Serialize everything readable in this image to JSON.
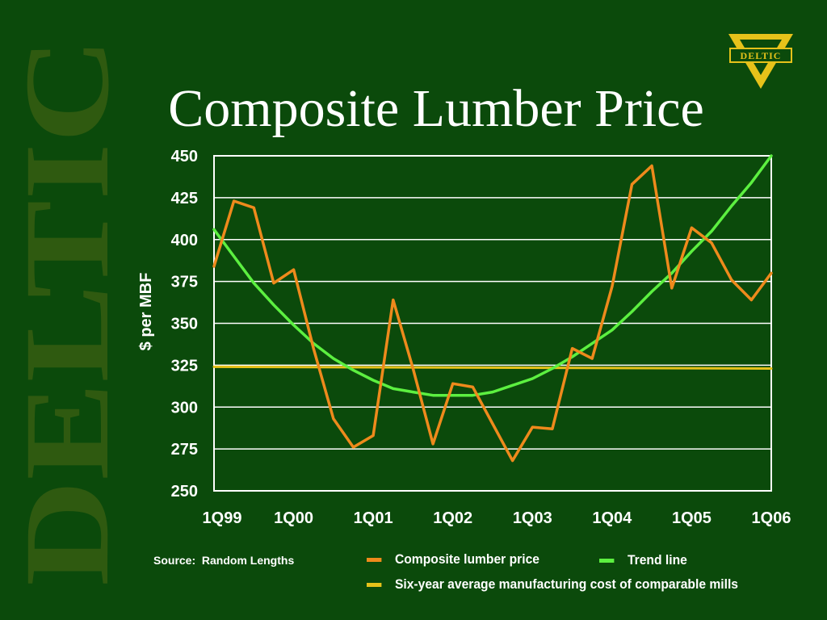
{
  "slide": {
    "title": "Composite Lumber Price",
    "watermark_text": "DELTIC",
    "logo_text": "DELTIC",
    "source": "Source:  Random Lengths"
  },
  "colors": {
    "background": "#0b4a0b",
    "watermark": "#2f5a10",
    "logo_yellow": "#e6c21a",
    "price_line": "#ee8a1c",
    "trend_line": "#5cf040",
    "cost_line": "#e6c21a",
    "grid": "#ffffff"
  },
  "chart_data": {
    "type": "line",
    "ylabel": "$ per MBF",
    "ylim": [
      250,
      450
    ],
    "yticks": [
      250,
      275,
      300,
      325,
      350,
      375,
      400,
      425,
      450
    ],
    "xlim": [
      0,
      28
    ],
    "xticks": [
      {
        "x": 0,
        "label": "1Q99"
      },
      {
        "x": 4,
        "label": "1Q00"
      },
      {
        "x": 8,
        "label": "1Q01"
      },
      {
        "x": 12,
        "label": "1Q02"
      },
      {
        "x": 16,
        "label": "1Q03"
      },
      {
        "x": 20,
        "label": "1Q04"
      },
      {
        "x": 24,
        "label": "1Q05"
      },
      {
        "x": 28,
        "label": "1Q06"
      }
    ],
    "grid": "horizontal",
    "legend": "below",
    "series": [
      {
        "name": "Composite lumber price",
        "color": "#ee8a1c",
        "x": [
          0,
          1,
          2,
          3,
          4,
          5,
          6,
          7,
          8,
          9,
          10,
          11,
          12,
          13,
          14,
          15,
          16,
          17,
          18,
          19,
          20,
          21,
          22,
          23,
          24,
          25,
          26,
          27,
          28
        ],
        "y": [
          384,
          423,
          419,
          374,
          382,
          335,
          293,
          276,
          283,
          364,
          323,
          278,
          314,
          312,
          290,
          268,
          288,
          287,
          335,
          329,
          372,
          433,
          444,
          371,
          407,
          398,
          376,
          364,
          380
        ]
      },
      {
        "name": "Trend line",
        "color": "#5cf040",
        "x": [
          0,
          1,
          2,
          3,
          4,
          5,
          6,
          7,
          8,
          9,
          10,
          11,
          12,
          13,
          14,
          15,
          16,
          17,
          18,
          19,
          20,
          21,
          22,
          23,
          24,
          25,
          26,
          27,
          28
        ],
        "y": [
          406,
          390,
          374,
          361,
          349,
          338,
          329,
          322,
          316,
          311,
          309,
          307,
          307,
          307,
          309,
          313,
          317,
          323,
          330,
          338,
          346,
          357,
          369,
          380,
          393,
          405,
          420,
          434,
          450
        ]
      },
      {
        "name": "Six-year average manufacturing cost of comparable mills",
        "color": "#e6c21a",
        "x": [
          0,
          28
        ],
        "y": [
          324,
          323
        ]
      }
    ]
  }
}
